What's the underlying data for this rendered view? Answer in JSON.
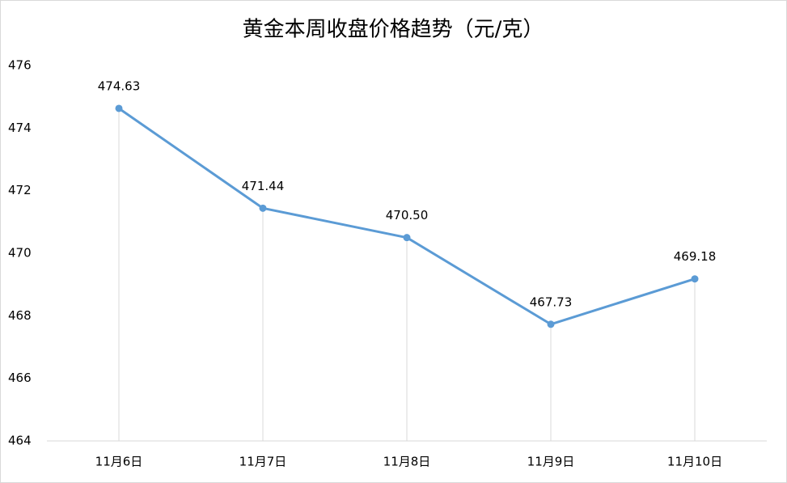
{
  "chart_data": {
    "type": "line",
    "title": "黄金本周收盘价格趋势（元/克）",
    "categories": [
      "11月6日",
      "11月7日",
      "11月8日",
      "11月9日",
      "11月10日"
    ],
    "series": [
      {
        "color": "#5b9bd5",
        "values": [
          474.63,
          471.44,
          470.5,
          467.73,
          469.18
        ],
        "value_labels": [
          "474.63",
          "471.44",
          "470.50",
          "467.73",
          "469.18"
        ]
      }
    ],
    "ylim": [
      464,
      476
    ],
    "yticks": [
      464,
      466,
      468,
      470,
      472,
      474,
      476
    ],
    "drop_lines": true
  }
}
